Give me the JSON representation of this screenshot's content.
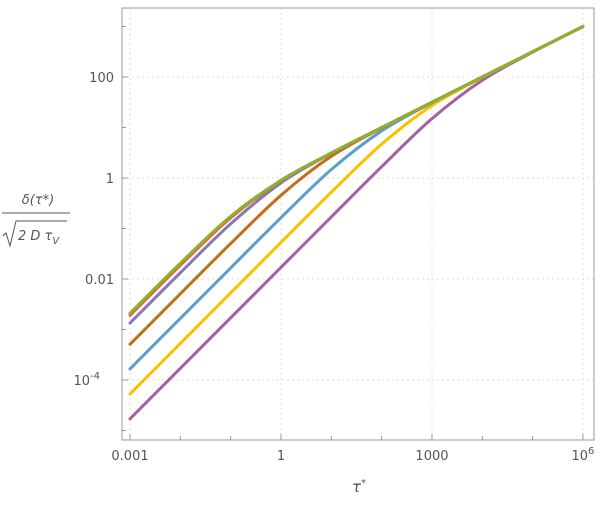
{
  "chart_data": {
    "type": "line",
    "xscale": "log",
    "yscale": "log",
    "xlim": [
      0.0006,
      2000000
    ],
    "ylim": [
      5e-06,
      2500
    ],
    "grid": true,
    "xlabel": {
      "base": "τ",
      "sup": "*"
    },
    "ylabel": {
      "numerator": "δ(τ*)",
      "denominator": "2 D τ",
      "denominator_sub": "V"
    },
    "xticks": [
      {
        "value": 0.001,
        "label": "0.001",
        "sup": ""
      },
      {
        "value": 1,
        "label": "1",
        "sup": ""
      },
      {
        "value": 1000,
        "label": "1000",
        "sup": ""
      },
      {
        "value": 1000000,
        "label": "10",
        "sup": "6"
      }
    ],
    "yticks": [
      {
        "value": 0.0001,
        "label": "10",
        "sup": "-4"
      },
      {
        "value": 0.01,
        "label": "0.01",
        "sup": ""
      },
      {
        "value": 1,
        "label": "1",
        "sup": ""
      },
      {
        "value": 100,
        "label": "100",
        "sup": ""
      }
    ],
    "x": [
      0.001,
      0.01,
      0.1,
      1,
      10,
      100,
      1000,
      10000,
      100000,
      1000000
    ],
    "series": [
      {
        "color": "#8FB032",
        "values": [
          0.0021,
          0.0206,
          0.175,
          0.903,
          3.13,
          9.99,
          31.6,
          100,
          316,
          1000
        ]
      },
      {
        "color": "#EB6235",
        "values": [
          0.0019,
          0.01867,
          0.1629,
          0.885,
          3.12,
          9.99,
          31.6,
          100,
          316,
          1000
        ]
      },
      {
        "color": "#8778B3",
        "values": [
          0.00134,
          0.01328,
          0.1234,
          0.801,
          3.08,
          9.97,
          31.6,
          100,
          316,
          1000
        ]
      },
      {
        "color": "#C56E1A",
        "values": [
          0.00051,
          0.0051,
          0.0503,
          0.454,
          2.69,
          9.81,
          31.6,
          100,
          316,
          1000
        ]
      },
      {
        "color": "#5D9EC7",
        "values": [
          0.000166,
          0.00166,
          0.0166,
          0.1638,
          1.47,
          8.57,
          31.1,
          99.8,
          316,
          1000
        ]
      },
      {
        "color": "#FFBF00",
        "values": [
          5.3e-05,
          0.00053,
          0.0053,
          0.053,
          0.523,
          4.68,
          27.2,
          98.3,
          315.7,
          1000
        ]
      },
      {
        "color": "#A5609D",
        "values": [
          1.7e-05,
          0.00017,
          0.0017,
          0.017,
          0.1698,
          1.676,
          14.97,
          86.2,
          310.9,
          998
        ]
      }
    ]
  }
}
